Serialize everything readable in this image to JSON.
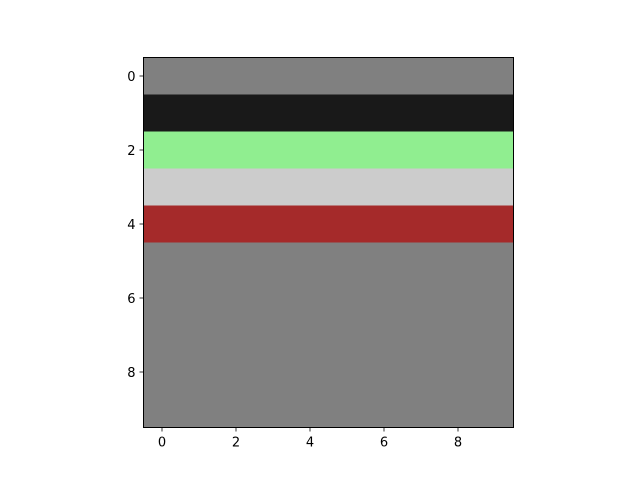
{
  "chart_data": {
    "type": "heatmap",
    "title": "",
    "xlabel": "",
    "ylabel": "",
    "n_cols": 10,
    "n_rows": 10,
    "xlim": [
      -0.5,
      9.5
    ],
    "ylim": [
      9.5,
      -0.5
    ],
    "x_ticks": [
      0,
      2,
      4,
      6,
      8
    ],
    "y_ticks": [
      0,
      2,
      4,
      6,
      8
    ],
    "grid": false,
    "legend": "none",
    "rows": [
      {
        "row": 0,
        "color": "#808080"
      },
      {
        "row": 1,
        "color": "#191919"
      },
      {
        "row": 2,
        "color": "#90ee90"
      },
      {
        "row": 3,
        "color": "#cccccc"
      },
      {
        "row": 4,
        "color": "#a52a2a"
      },
      {
        "row": 5,
        "color": "#808080"
      },
      {
        "row": 6,
        "color": "#808080"
      },
      {
        "row": 7,
        "color": "#808080"
      },
      {
        "row": 8,
        "color": "#808080"
      },
      {
        "row": 9,
        "color": "#808080"
      }
    ]
  }
}
